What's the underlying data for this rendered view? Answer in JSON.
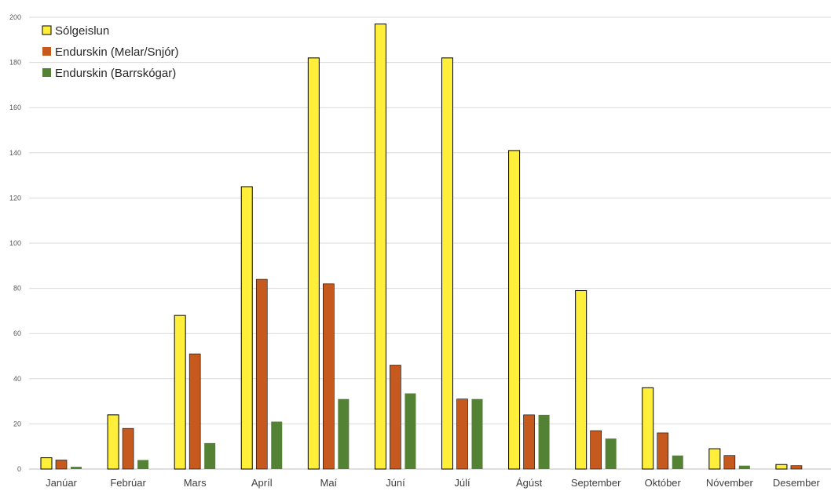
{
  "chart_data": {
    "type": "bar",
    "categories": [
      "Janúar",
      "Febrúar",
      "Mars",
      "Apríl",
      "Maí",
      "Júní",
      "Júlí",
      "Ágúst",
      "September",
      "Október",
      "Nóvember",
      "Desember"
    ],
    "series": [
      {
        "name": "Sólgeislun",
        "color": "#ffef3a",
        "values": [
          5,
          24,
          68,
          125,
          182,
          197,
          182,
          141,
          79,
          36,
          9,
          2
        ]
      },
      {
        "name": "Endurskin (Melar/Snjór)",
        "color": "#c65a1e",
        "values": [
          4,
          18,
          51,
          84,
          82,
          46,
          31,
          24,
          17,
          16,
          6,
          1.5
        ]
      },
      {
        "name": "Endurskin (Barrskógar)",
        "color": "#548235",
        "values": [
          1,
          4,
          11.5,
          21,
          31,
          33.5,
          31,
          24,
          13.5,
          6,
          1.5,
          0
        ]
      }
    ],
    "yticks": [
      0,
      20,
      40,
      60,
      80,
      100,
      120,
      140,
      160,
      180,
      200
    ],
    "ylim": [
      0,
      200
    ],
    "grid": true,
    "legend_position": "top-left",
    "title": "",
    "xlabel": "",
    "ylabel": ""
  }
}
